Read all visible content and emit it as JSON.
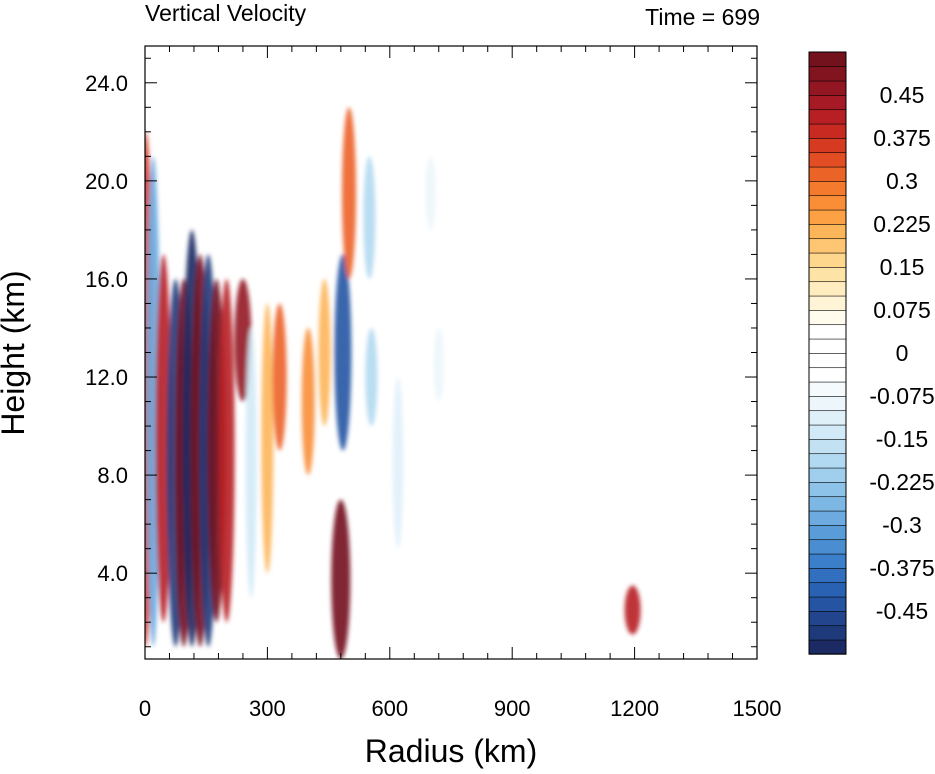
{
  "chart_data": {
    "type": "heatmap",
    "title": "Vertical Velocity",
    "time_label": "Time = 699",
    "xlabel": "Radius (km)",
    "ylabel": "Height (km)",
    "xlim": [
      0,
      1500
    ],
    "ylim": [
      0.5,
      25.5
    ],
    "x_ticks": [
      0,
      300,
      600,
      900,
      1200,
      1500
    ],
    "x_tick_labels": [
      "0",
      "300",
      "600",
      "900",
      "1200",
      "1500"
    ],
    "y_ticks": [
      4,
      8,
      12,
      16,
      20,
      24
    ],
    "y_tick_labels": [
      "4.0",
      "8.0",
      "12.0",
      "16.0",
      "20.0",
      "24.0"
    ],
    "colorbar": {
      "levels": [
        -0.525,
        -0.5,
        -0.475,
        -0.45,
        -0.425,
        -0.4,
        -0.375,
        -0.35,
        -0.325,
        -0.3,
        -0.275,
        -0.25,
        -0.225,
        -0.2,
        -0.175,
        -0.15,
        -0.125,
        -0.1,
        -0.075,
        -0.05,
        -0.025,
        0,
        0.025,
        0.05,
        0.075,
        0.1,
        0.125,
        0.15,
        0.175,
        0.2,
        0.225,
        0.25,
        0.275,
        0.3,
        0.325,
        0.35,
        0.375,
        0.4,
        0.425,
        0.45,
        0.475,
        0.5,
        0.525
      ],
      "labels": [
        "-0.45",
        "-0.375",
        "-0.3",
        "-0.225",
        "-0.15",
        "-0.075",
        "0",
        "0.075",
        "0.15",
        "0.225",
        "0.3",
        "0.375",
        "0.45"
      ],
      "label_values": [
        -0.45,
        -0.375,
        -0.3,
        -0.225,
        -0.15,
        -0.075,
        0,
        0.075,
        0.15,
        0.225,
        0.3,
        0.375,
        0.45
      ],
      "colors": [
        "#1b2a63",
        "#1f3a7a",
        "#22458e",
        "#2554a3",
        "#2a62b3",
        "#3270bf",
        "#3b7ec9",
        "#4a8ed1",
        "#5a9cd8",
        "#6caadf",
        "#7db7e4",
        "#8ec3e9",
        "#a0cfed",
        "#b1d9f1",
        "#c2e2f4",
        "#d2eaf7",
        "#e0f0f9",
        "#ecf6fb",
        "#f5fafd",
        "#ffffff",
        "#ffffff",
        "#ffffff",
        "#ffffff",
        "#fffcee",
        "#fff5d6",
        "#ffedc0",
        "#fee3a7",
        "#fed68c",
        "#fec672",
        "#fdb55a",
        "#fca245",
        "#f98e37",
        "#f47a2e",
        "#ec6328",
        "#e24d24",
        "#d63b22",
        "#c82a22",
        "#b71f24",
        "#a51a24",
        "#931722",
        "#82141f",
        "#73111c"
      ]
    },
    "features": [
      {
        "r": 2,
        "z0": 1,
        "z1": 22,
        "w": 0.35
      },
      {
        "r": 20,
        "z0": 1,
        "z1": 21,
        "w": -0.3
      },
      {
        "r": 45,
        "z0": 2,
        "z1": 17,
        "w": 0.4
      },
      {
        "r": 75,
        "z0": 1,
        "z1": 16,
        "w": -0.5
      },
      {
        "r": 95,
        "z0": 1,
        "z1": 16,
        "w": 0.5
      },
      {
        "r": 115,
        "z0": 1,
        "z1": 18,
        "w": -0.55
      },
      {
        "r": 135,
        "z0": 1,
        "z1": 17,
        "w": 0.55
      },
      {
        "r": 155,
        "z0": 1,
        "z1": 17,
        "w": -0.5
      },
      {
        "r": 175,
        "z0": 2,
        "z1": 16,
        "w": 0.5
      },
      {
        "r": 200,
        "z0": 2,
        "z1": 16,
        "w": 0.4
      },
      {
        "r": 240,
        "z0": 11,
        "z1": 16,
        "w": 0.45
      },
      {
        "r": 260,
        "z0": 3,
        "z1": 14,
        "w": -0.15
      },
      {
        "r": 300,
        "z0": 4,
        "z1": 15,
        "w": 0.2
      },
      {
        "r": 330,
        "z0": 9,
        "z1": 15,
        "w": 0.3
      },
      {
        "r": 400,
        "z0": 8,
        "z1": 14,
        "w": 0.25
      },
      {
        "r": 440,
        "z0": 10,
        "z1": 16,
        "w": 0.2
      },
      {
        "r": 480,
        "z0": 0.5,
        "z1": 7,
        "w": 0.55
      },
      {
        "r": 485,
        "z0": 9,
        "z1": 17,
        "w": -0.45
      },
      {
        "r": 500,
        "z0": 16,
        "z1": 23,
        "w": 0.3
      },
      {
        "r": 550,
        "z0": 16,
        "z1": 21,
        "w": -0.2
      },
      {
        "r": 555,
        "z0": 10,
        "z1": 14,
        "w": -0.2
      },
      {
        "r": 620,
        "z0": 5,
        "z1": 12,
        "w": -0.12
      },
      {
        "r": 700,
        "z0": 18,
        "z1": 21,
        "w": -0.1
      },
      {
        "r": 720,
        "z0": 11,
        "z1": 14,
        "w": -0.1
      },
      {
        "r": 1195,
        "z0": 1.5,
        "z1": 3.5,
        "w": 0.4
      }
    ]
  }
}
